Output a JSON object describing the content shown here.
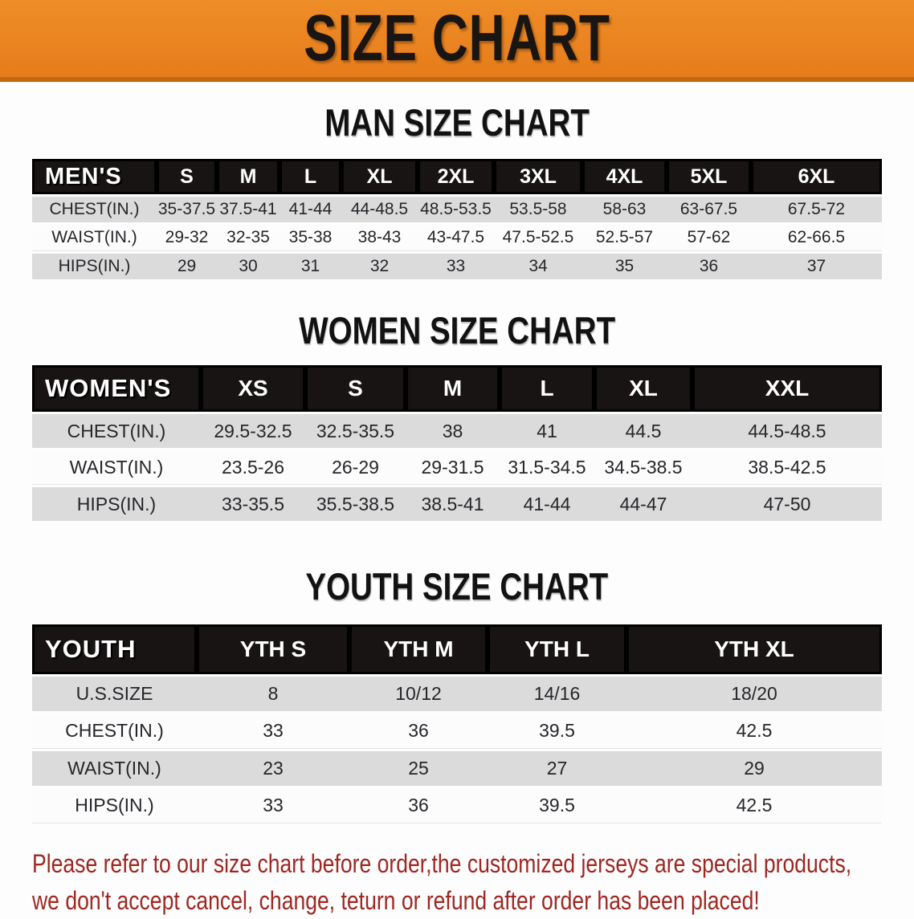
{
  "banner": {
    "title": "SIZE CHART",
    "bg_color": "#e8811e",
    "border_color": "#c4680f",
    "text_color": "#181512"
  },
  "chart_data": [
    {
      "type": "table",
      "title": "MAN SIZE CHART",
      "corner_label": "MEN'S",
      "columns": [
        "S",
        "M",
        "L",
        "XL",
        "2XL",
        "3XL",
        "4XL",
        "5XL",
        "6XL"
      ],
      "rows": [
        {
          "label": "CHEST(IN.)",
          "values": [
            "35-37.5",
            "37.5-41",
            "41-44",
            "44-48.5",
            "48.5-53.5",
            "53.5-58",
            "58-63",
            "63-67.5",
            "67.5-72"
          ]
        },
        {
          "label": "WAIST(IN.)",
          "values": [
            "29-32",
            "32-35",
            "35-38",
            "38-43",
            "43-47.5",
            "47.5-52.5",
            "52.5-57",
            "57-62",
            "62-66.5"
          ]
        },
        {
          "label": "HIPS(IN.)",
          "values": [
            "29",
            "30",
            "31",
            "32",
            "33",
            "34",
            "35",
            "36",
            "37"
          ]
        }
      ]
    },
    {
      "type": "table",
      "title": "WOMEN SIZE CHART",
      "corner_label": "WOMEN'S",
      "columns": [
        "XS",
        "S",
        "M",
        "L",
        "XL",
        "XXL"
      ],
      "rows": [
        {
          "label": "CHEST(IN.)",
          "values": [
            "29.5-32.5",
            "32.5-35.5",
            "38",
            "41",
            "44.5",
            "44.5-48.5"
          ]
        },
        {
          "label": "WAIST(IN.)",
          "values": [
            "23.5-26",
            "26-29",
            "29-31.5",
            "31.5-34.5",
            "34.5-38.5",
            "38.5-42.5"
          ]
        },
        {
          "label": "HIPS(IN.)",
          "values": [
            "33-35.5",
            "35.5-38.5",
            "38.5-41",
            "41-44",
            "44-47",
            "47-50"
          ]
        }
      ]
    },
    {
      "type": "table",
      "title": "YOUTH SIZE CHART",
      "corner_label": "YOUTH",
      "columns": [
        "YTH S",
        "YTH M",
        "YTH L",
        "YTH XL"
      ],
      "rows": [
        {
          "label": "U.S.SIZE",
          "values": [
            "8",
            "10/12",
            "14/16",
            "18/20"
          ]
        },
        {
          "label": "CHEST(IN.)",
          "values": [
            "33",
            "36",
            "39.5",
            "42.5"
          ]
        },
        {
          "label": "WAIST(IN.)",
          "values": [
            "23",
            "25",
            "27",
            "29"
          ]
        },
        {
          "label": "HIPS(IN.)",
          "values": [
            "33",
            "36",
            "39.5",
            "42.5"
          ]
        }
      ]
    }
  ],
  "footer": {
    "line1": "Please refer to our size chart before order,the customized jerseys are special products,",
    "line2": "we don't accept cancel, change, teturn or refund after order has been placed!",
    "text_color": "#9e2722"
  }
}
